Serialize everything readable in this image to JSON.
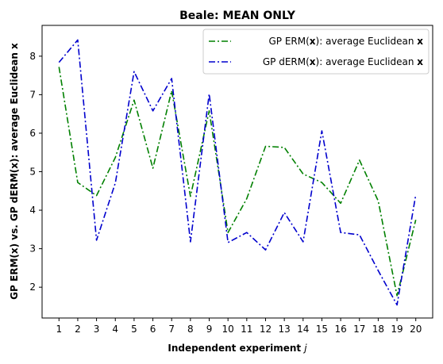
{
  "chart_data": {
    "type": "line",
    "title": "Beale: MEAN ONLY",
    "xlabel_prefix": "Independent experiment ",
    "xlabel_var": "j",
    "ylabel": "GP ERM(x) vs. GP dERM(x): average Euclidean x",
    "x": [
      1,
      2,
      3,
      4,
      5,
      6,
      7,
      8,
      9,
      10,
      11,
      12,
      13,
      14,
      15,
      16,
      17,
      18,
      19,
      20
    ],
    "xlim": [
      0.1,
      20.9
    ],
    "ylim": [
      1.2,
      8.8
    ],
    "yticks": [
      2,
      3,
      4,
      5,
      6,
      7,
      8
    ],
    "grid": false,
    "legend_position": "top-right",
    "series": [
      {
        "legend_prefix": "GP ERM(",
        "legend_bold": "x",
        "legend_mid": "): average Euclidean ",
        "legend_bold2": "x",
        "color": "#008000",
        "dash": "dash-dot",
        "values": [
          7.72,
          4.72,
          4.38,
          5.37,
          6.86,
          5.09,
          7.1,
          4.36,
          6.58,
          3.42,
          4.3,
          5.66,
          5.63,
          4.94,
          4.72,
          4.18,
          5.3,
          4.24,
          1.78,
          3.75
        ]
      },
      {
        "legend_prefix": "GP dERM(",
        "legend_bold": "x",
        "legend_mid": "): average Euclidean ",
        "legend_bold2": "x",
        "color": "#0000cd",
        "dash": "dash-dot",
        "values": [
          7.84,
          8.42,
          3.22,
          4.71,
          7.6,
          6.58,
          7.42,
          3.18,
          7.02,
          3.16,
          3.42,
          2.97,
          3.94,
          3.18,
          6.06,
          3.42,
          3.36,
          2.43,
          1.54,
          4.4
        ]
      }
    ]
  }
}
